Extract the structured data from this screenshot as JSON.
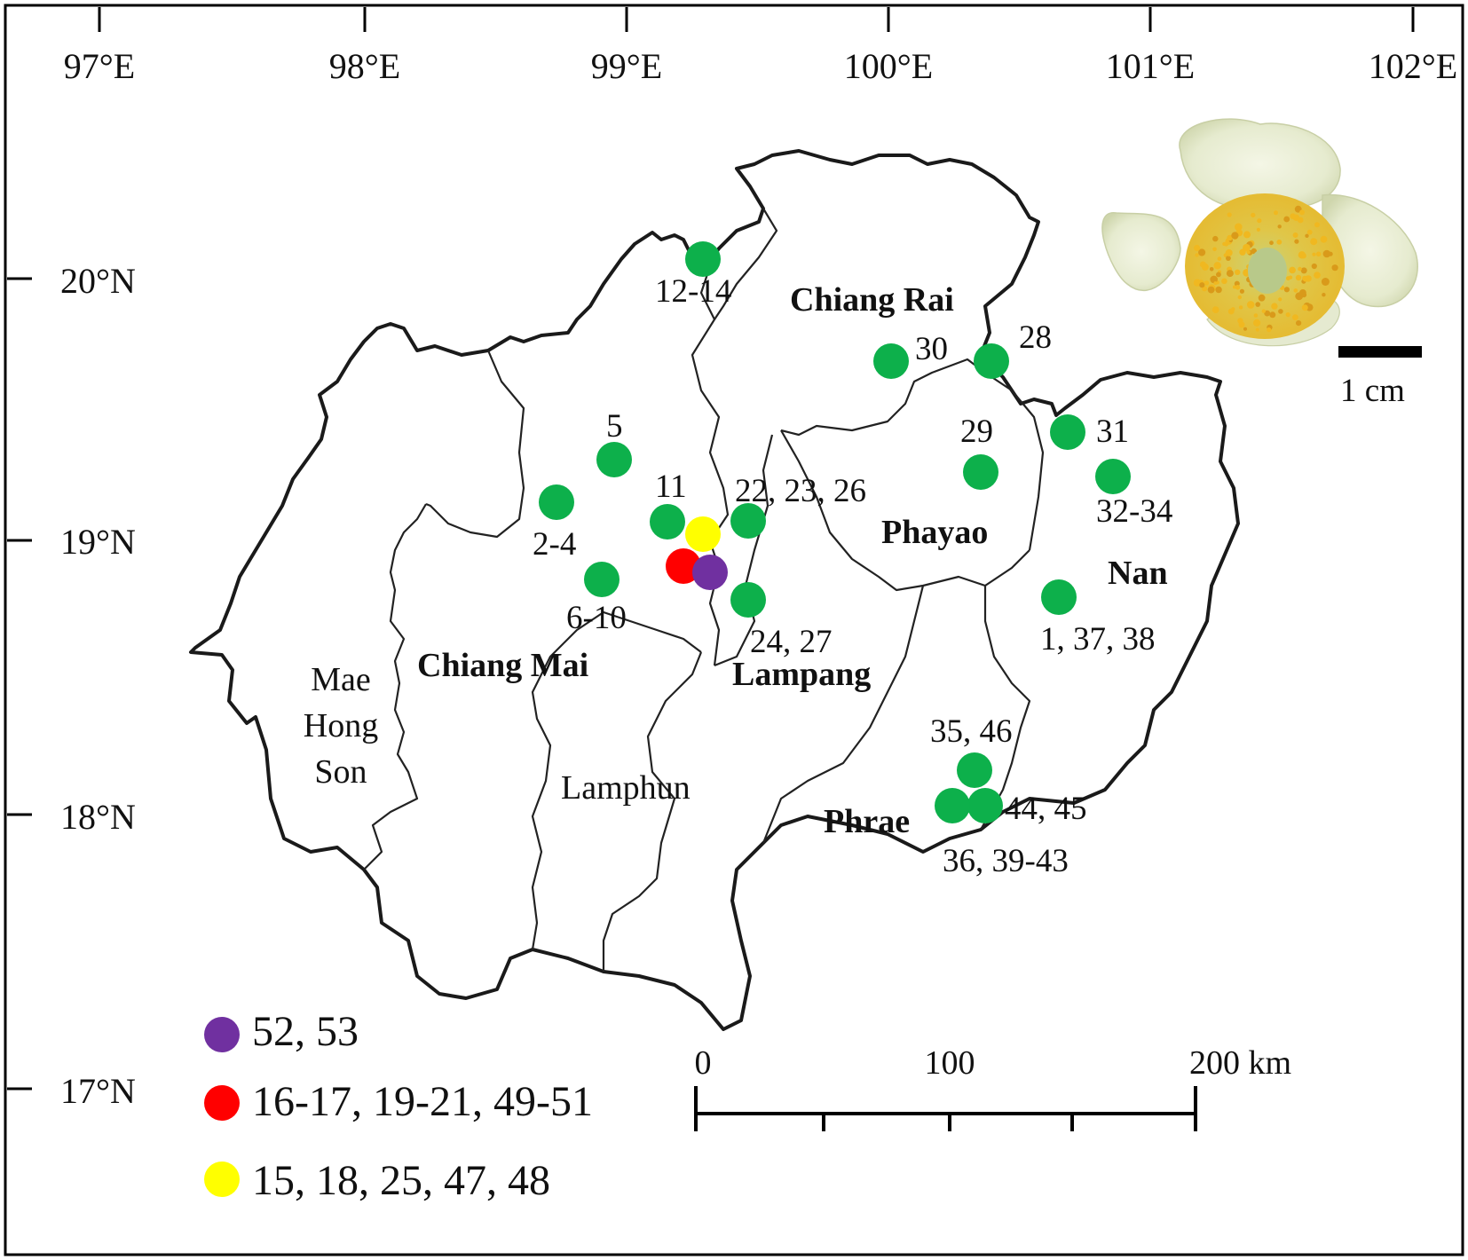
{
  "longitude_ticks": [
    "97°E",
    "98°E",
    "99°E",
    "100°E",
    "101°E",
    "102°E"
  ],
  "latitude_ticks": [
    "20°N",
    "19°N",
    "18°N",
    "17°N"
  ],
  "provinces": {
    "chiang_rai": "Chiang Rai",
    "phayao": "Phayao",
    "nan": "Nan",
    "chiang_mai": "Chiang Mai",
    "lampang": "Lampang",
    "phrae": "Phrae",
    "lamphun": "Lamphun",
    "mae_hong_son": [
      "Mae",
      "Hong",
      "Son"
    ]
  },
  "sites": [
    {
      "label": "12-14",
      "color": "green"
    },
    {
      "label": "30",
      "color": "green"
    },
    {
      "label": "28",
      "color": "green"
    },
    {
      "label": "29",
      "color": "green"
    },
    {
      "label": "31",
      "color": "green"
    },
    {
      "label": "32-34",
      "color": "green"
    },
    {
      "label": "5",
      "color": "green"
    },
    {
      "label": "2-4",
      "color": "green"
    },
    {
      "label": "11",
      "color": "green"
    },
    {
      "label": "22, 23, 26",
      "color": "green"
    },
    {
      "label": "6-10",
      "color": "green"
    },
    {
      "label": "24, 27",
      "color": "green"
    },
    {
      "label": "1, 37, 38",
      "color": "green"
    },
    {
      "label": "35, 46",
      "color": "green"
    },
    {
      "label": "44, 45",
      "color": "green"
    },
    {
      "label": "36, 39-43",
      "color": "green"
    }
  ],
  "legend": [
    {
      "label": "52, 53",
      "color": "purple"
    },
    {
      "label": "16-17, 19-21, 49-51",
      "color": "red"
    },
    {
      "label": "15, 18, 25, 47, 48",
      "color": "yellow"
    }
  ],
  "scale_bar": {
    "labels": [
      "0",
      "100",
      "200 km"
    ]
  },
  "photo_scale": "1 cm",
  "colors": {
    "green": "#0db04b",
    "purple": "#7030a0",
    "red": "#ff0000",
    "yellow": "#ffff00",
    "boundary": "#222222"
  }
}
